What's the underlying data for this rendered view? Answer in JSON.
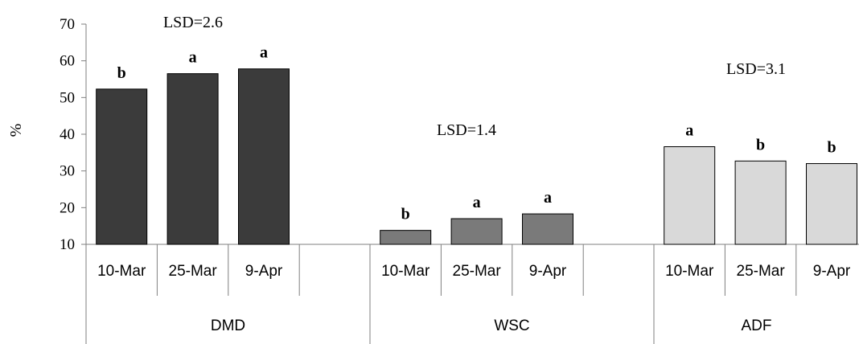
{
  "chart_data": {
    "type": "bar",
    "title": "",
    "ylabel": "%",
    "xlabel": "",
    "ylim": [
      10,
      70
    ],
    "yticks": [
      "10",
      "20",
      "30",
      "40",
      "50",
      "60",
      "70"
    ],
    "grid": false,
    "legend": "none",
    "groups": [
      {
        "name": "DMD",
        "lsd_label": "LSD=2.6",
        "color": "#3b3b3b",
        "categories": [
          "10-Mar",
          "25-Mar",
          "9-Apr"
        ],
        "values": [
          52.3,
          56.5,
          57.8
        ],
        "letters": [
          "b",
          "a",
          "a"
        ]
      },
      {
        "name": "WSC",
        "lsd_label": "LSD=1.4",
        "color": "#7a7a7a",
        "categories": [
          "10-Mar",
          "25-Mar",
          "9-Apr"
        ],
        "values": [
          13.8,
          17.0,
          18.3
        ],
        "letters": [
          "b",
          "a",
          "a"
        ]
      },
      {
        "name": "ADF",
        "lsd_label": "LSD=3.1",
        "color": "#d9d9d9",
        "categories": [
          "10-Mar",
          "25-Mar",
          "9-Apr"
        ],
        "values": [
          36.6,
          32.7,
          32.0
        ],
        "letters": [
          "a",
          "b",
          "b"
        ]
      }
    ]
  }
}
